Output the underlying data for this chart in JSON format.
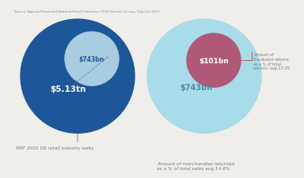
{
  "background_color": "#f0eeeb",
  "left_title": "NRF 2021 US retail industry sales",
  "right_title": "Amount of merchandise returned\nas a % of total sales avg 14.6%",
  "left_big_label": "$5.13tn",
  "left_small_label": "$743bn",
  "right_big_label": "$743bn",
  "right_small_label": "$101bn",
  "right_annotation": "Amount of\nfraudulent returns\nas a % of total\nreturns: avg 13.3%",
  "source_text": "Source: Appriss Retail and National Retail Federation 2022 Returns Survey, Sep-Oct 2021",
  "left_big_color": "#1e5799",
  "left_small_color": "#a8cce0",
  "right_big_color": "#a8dce8",
  "right_small_color": "#b05878",
  "title_color": "#777777",
  "left_big_text_color": "#ffffff",
  "left_small_text_color": "#1e5799",
  "right_big_text_color": "#4a8aaa",
  "right_small_text_color": "#ffffff",
  "annotation_color": "#777777",
  "source_color": "#888888",
  "dashed_line_color": "#777777",
  "annotation_line_color": "#b05878"
}
